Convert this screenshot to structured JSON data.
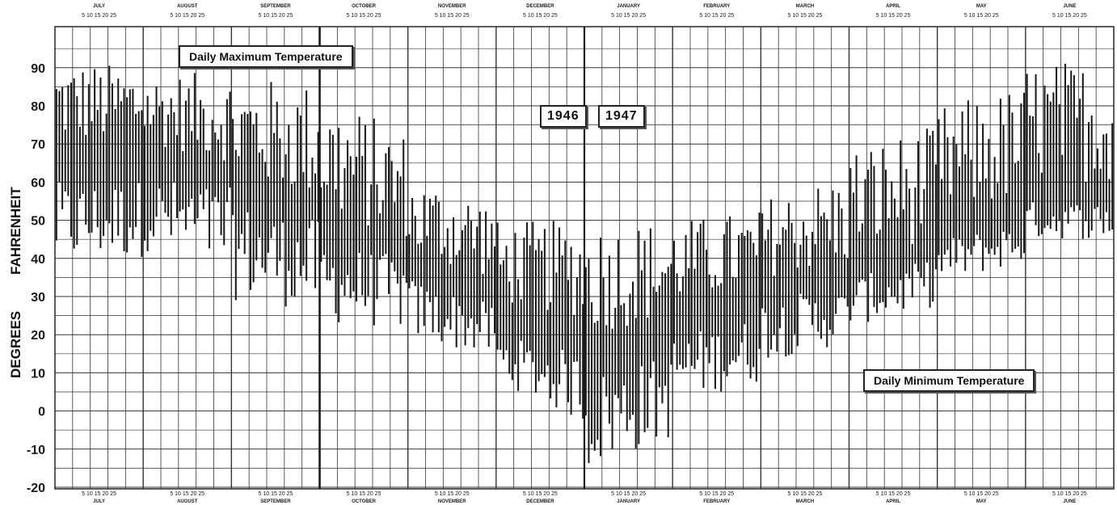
{
  "chart_data": {
    "type": "bar",
    "subtype": "floating-range (daily max/min)",
    "ylabel_words": [
      "DEGREES",
      "FAHRENHEIT"
    ],
    "ylim": [
      -20,
      95
    ],
    "yticks": [
      -20,
      -10,
      0,
      10,
      20,
      30,
      40,
      50,
      60,
      70,
      80,
      90
    ],
    "grid": true,
    "top_labels": {
      "title_max": "Daily Maximum Temperature",
      "title_min": "Daily Minimum Temperature"
    },
    "year_labels": [
      "1946",
      "1947"
    ],
    "months_top": [
      "JULY",
      "AUGUST",
      "SEPTEMBER",
      "OCTOBER",
      "NOVEMBER",
      "DECEMBER",
      "JANUARY",
      "FEBRUARY",
      "MARCH",
      "APRIL",
      "MAY",
      "JUNE"
    ],
    "months_bottom": [
      "JULY",
      "AUGUST",
      "SEPTEMBER",
      "OCTOBER",
      "NOVEMBER",
      "DECEMBER",
      "JANUARY",
      "FEBRUARY",
      "MARCH",
      "APRIL",
      "MAY",
      "JUNE"
    ],
    "day_ticks": "5 10 15 20 25",
    "monthly_ranges": [
      {
        "month": "JULY",
        "max_high": 92,
        "max_low": 70,
        "min_high": 60,
        "min_low": 38
      },
      {
        "month": "AUGUST",
        "max_high": 89,
        "max_low": 70,
        "min_high": 62,
        "min_low": 42
      },
      {
        "month": "SEPTEMBER",
        "max_high": 88,
        "max_low": 60,
        "min_high": 55,
        "min_low": 29
      },
      {
        "month": "OCTOBER",
        "max_high": 84,
        "max_low": 50,
        "min_high": 45,
        "min_low": 23
      },
      {
        "month": "NOVEMBER",
        "max_high": 62,
        "max_low": 40,
        "min_high": 35,
        "min_low": 19
      },
      {
        "month": "DECEMBER",
        "max_high": 50,
        "max_low": 28,
        "min_high": 20,
        "min_low": 8
      },
      {
        "month": "JANUARY",
        "max_high": 50,
        "max_low": 20,
        "min_high": 10,
        "min_low": -16
      },
      {
        "month": "FEBRUARY",
        "max_high": 50,
        "max_low": 28,
        "min_high": 20,
        "min_low": 2
      },
      {
        "month": "MARCH",
        "max_high": 56,
        "max_low": 35,
        "min_high": 30,
        "min_low": 13
      },
      {
        "month": "APRIL",
        "max_high": 70,
        "max_low": 40,
        "min_high": 35,
        "min_low": 22
      },
      {
        "month": "MAY",
        "max_high": 80,
        "max_low": 50,
        "min_high": 45,
        "min_low": 33
      },
      {
        "month": "JUNE",
        "max_high": 92,
        "max_low": 60,
        "min_high": 55,
        "min_low": 45
      }
    ]
  },
  "colors": {
    "ink": "#1a1a1a",
    "grid": "#333333",
    "paper": "#ffffff"
  }
}
